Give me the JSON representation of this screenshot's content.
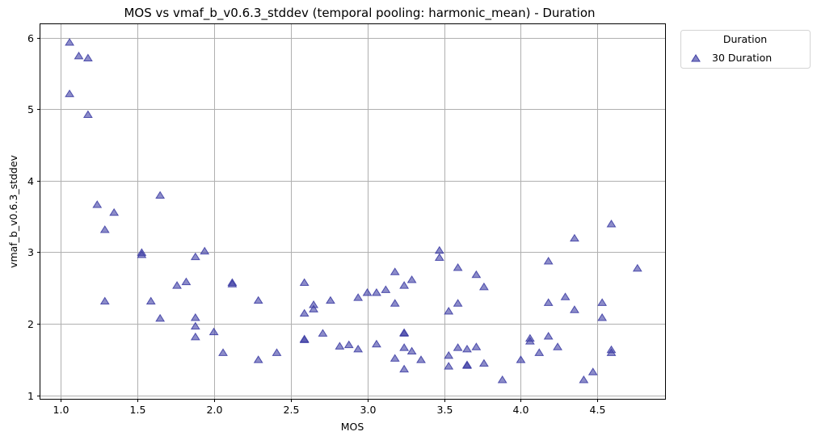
{
  "chart_data": {
    "type": "scatter",
    "title": "MOS vs vmaf_b_v0.6.3_stddev (temporal pooling: harmonic_mean) - Duration",
    "xlabel": "MOS",
    "ylabel": "vmaf_b_v0.6.3_stddev",
    "xlim": [
      0.87,
      4.94
    ],
    "ylim": [
      0.95,
      6.19
    ],
    "xticks": [
      1.0,
      1.5,
      2.0,
      2.5,
      3.0,
      3.5,
      4.0,
      4.5
    ],
    "xtick_labels": [
      "1.0",
      "1.5",
      "2.0",
      "2.5",
      "3.0",
      "3.5",
      "4.0",
      "4.5"
    ],
    "yticks": [
      1,
      2,
      3,
      4,
      5,
      6
    ],
    "ytick_labels": [
      "1",
      "2",
      "3",
      "4",
      "5",
      "6"
    ],
    "grid": true,
    "legend": {
      "title": "Duration",
      "placement": "outside-top-right",
      "entries": [
        "30 Duration"
      ]
    },
    "series": [
      {
        "name": "30 Duration",
        "marker": "triangle",
        "color": "#3f3fa5",
        "points": [
          [
            1.06,
            5.93
          ],
          [
            1.06,
            5.21
          ],
          [
            1.12,
            5.74
          ],
          [
            1.18,
            5.71
          ],
          [
            1.18,
            4.92
          ],
          [
            1.24,
            3.66
          ],
          [
            1.29,
            3.31
          ],
          [
            1.29,
            2.31
          ],
          [
            1.35,
            3.55
          ],
          [
            1.53,
            2.99
          ],
          [
            1.53,
            2.96
          ],
          [
            1.59,
            2.31
          ],
          [
            1.65,
            3.79
          ],
          [
            1.65,
            2.07
          ],
          [
            1.76,
            2.53
          ],
          [
            1.82,
            2.58
          ],
          [
            1.88,
            2.93
          ],
          [
            1.88,
            2.08
          ],
          [
            1.88,
            1.96
          ],
          [
            1.88,
            1.81
          ],
          [
            1.94,
            3.01
          ],
          [
            2.0,
            1.88
          ],
          [
            2.06,
            1.59
          ],
          [
            2.12,
            2.57
          ],
          [
            2.12,
            2.55
          ],
          [
            2.29,
            2.32
          ],
          [
            2.29,
            1.49
          ],
          [
            2.41,
            1.59
          ],
          [
            2.59,
            2.57
          ],
          [
            2.59,
            2.14
          ],
          [
            2.59,
            1.78
          ],
          [
            2.59,
            1.77
          ],
          [
            2.65,
            2.26
          ],
          [
            2.65,
            2.2
          ],
          [
            2.71,
            1.86
          ],
          [
            2.76,
            2.32
          ],
          [
            2.82,
            1.68
          ],
          [
            2.88,
            1.7
          ],
          [
            2.94,
            2.36
          ],
          [
            2.94,
            1.64
          ],
          [
            3.0,
            2.43
          ],
          [
            3.06,
            2.43
          ],
          [
            3.06,
            1.71
          ],
          [
            3.12,
            2.47
          ],
          [
            3.18,
            2.72
          ],
          [
            3.18,
            2.28
          ],
          [
            3.18,
            1.51
          ],
          [
            3.24,
            2.53
          ],
          [
            3.24,
            1.87
          ],
          [
            3.24,
            1.86
          ],
          [
            3.24,
            1.66
          ],
          [
            3.24,
            1.36
          ],
          [
            3.29,
            2.61
          ],
          [
            3.29,
            1.61
          ],
          [
            3.35,
            1.49
          ],
          [
            3.47,
            3.02
          ],
          [
            3.47,
            2.92
          ],
          [
            3.53,
            2.17
          ],
          [
            3.53,
            1.55
          ],
          [
            3.53,
            1.4
          ],
          [
            3.59,
            2.78
          ],
          [
            3.59,
            2.28
          ],
          [
            3.59,
            1.66
          ],
          [
            3.65,
            1.64
          ],
          [
            3.65,
            1.42
          ],
          [
            3.65,
            1.41
          ],
          [
            3.71,
            2.68
          ],
          [
            3.71,
            1.67
          ],
          [
            3.76,
            2.51
          ],
          [
            3.76,
            1.44
          ],
          [
            3.88,
            1.21
          ],
          [
            4.0,
            1.49
          ],
          [
            4.06,
            1.79
          ],
          [
            4.06,
            1.75
          ],
          [
            4.12,
            1.59
          ],
          [
            4.18,
            2.87
          ],
          [
            4.18,
            2.29
          ],
          [
            4.18,
            1.82
          ],
          [
            4.24,
            1.67
          ],
          [
            4.29,
            2.37
          ],
          [
            4.35,
            3.19
          ],
          [
            4.35,
            2.19
          ],
          [
            4.41,
            1.21
          ],
          [
            4.47,
            1.32
          ],
          [
            4.53,
            2.29
          ],
          [
            4.53,
            2.08
          ],
          [
            4.59,
            3.39
          ],
          [
            4.59,
            1.63
          ],
          [
            4.59,
            1.59
          ],
          [
            4.76,
            2.77
          ]
        ]
      }
    ]
  }
}
